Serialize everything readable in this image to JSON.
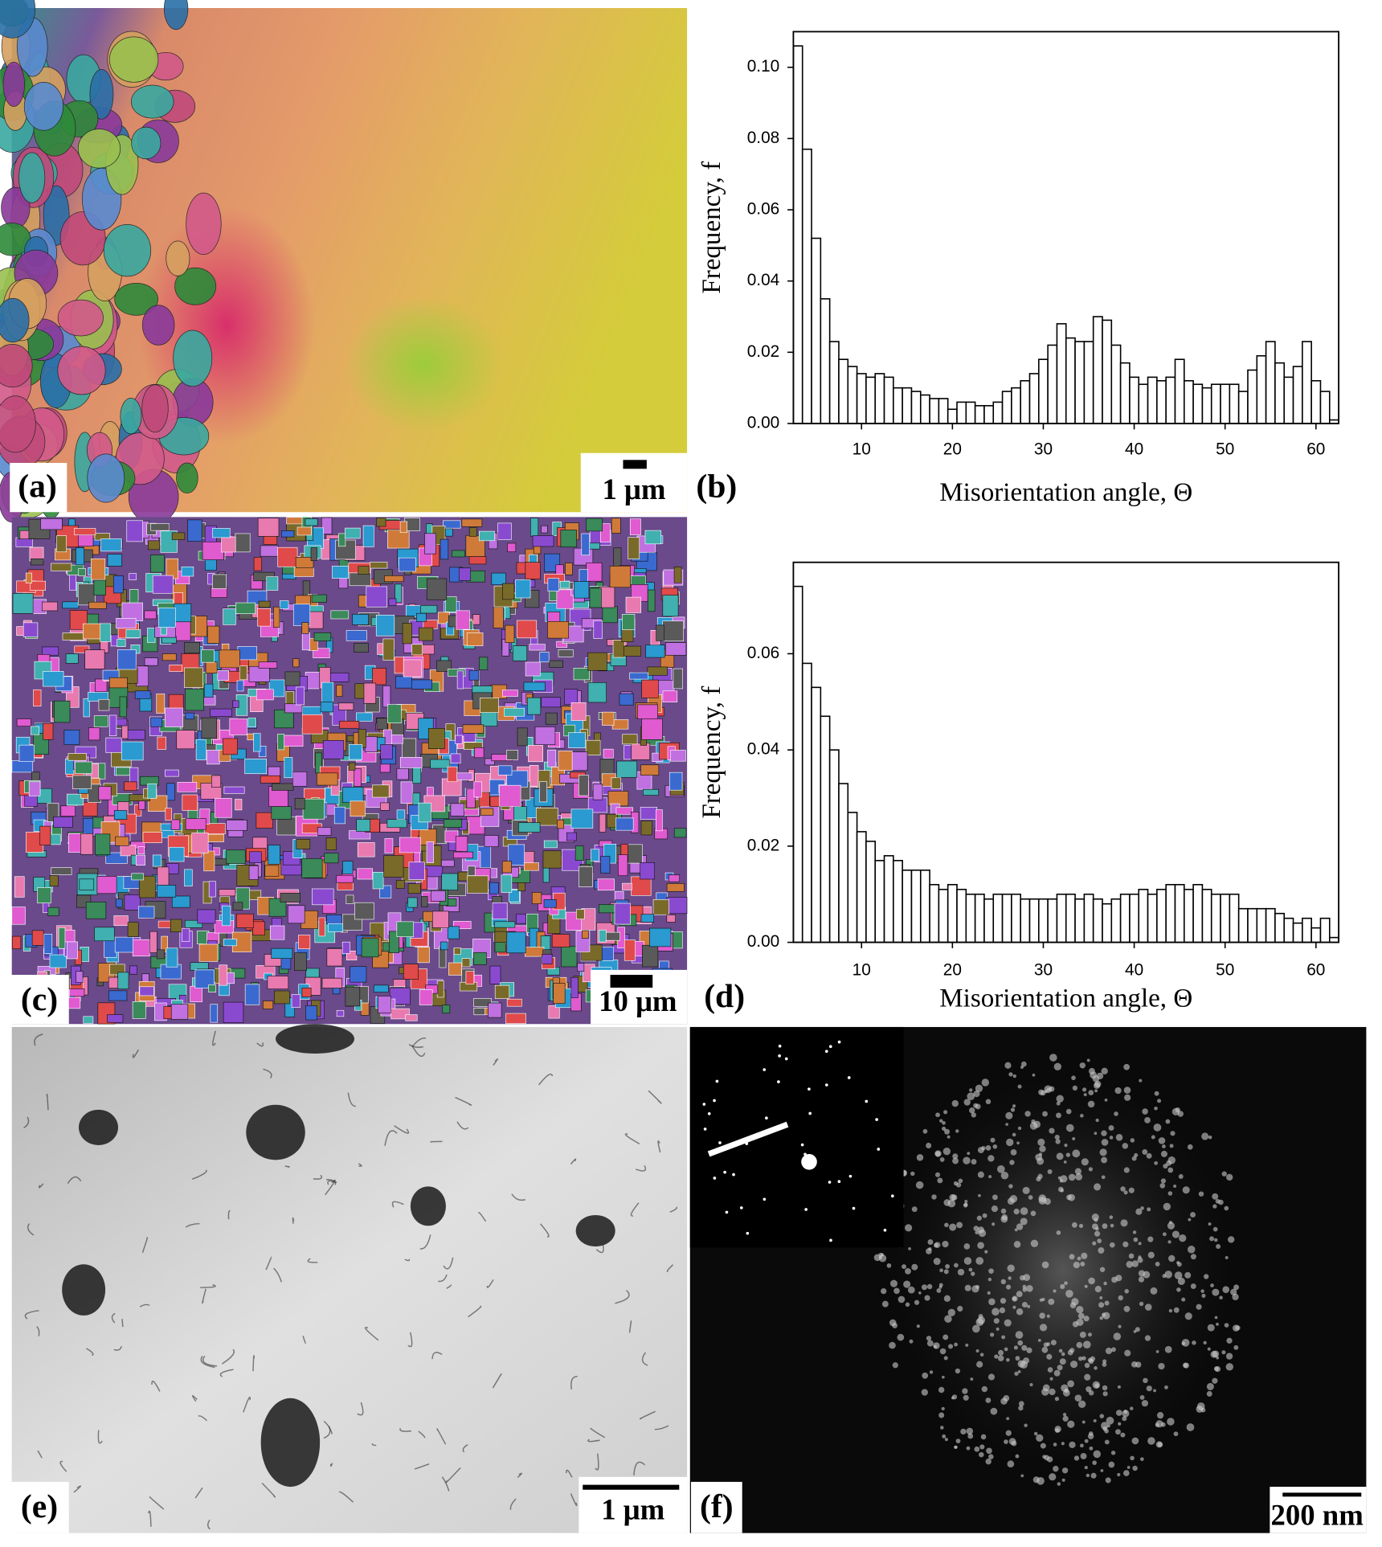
{
  "chart_data": [
    {
      "type": "histogram",
      "panel": "(b)",
      "xlabel": "Misorientation angle, Θ",
      "ylabel": "Frequency, f",
      "bins": [
        2.5,
        3.5,
        4.5,
        5.5,
        6.5,
        7.5,
        8.5,
        9.5,
        10.5,
        11.5,
        12.5,
        13.5,
        14.5,
        15.5,
        16.5,
        17.5,
        18.5,
        19.5,
        20.5,
        21.5,
        22.5,
        23.5,
        24.5,
        25.5,
        26.5,
        27.5,
        28.5,
        29.5,
        30.5,
        31.5,
        32.5,
        33.5,
        34.5,
        35.5,
        36.5,
        37.5,
        38.5,
        39.5,
        40.5,
        41.5,
        42.5,
        43.5,
        44.5,
        45.5,
        46.5,
        47.5,
        48.5,
        49.5,
        50.5,
        51.5,
        52.5,
        53.5,
        54.5,
        55.5,
        56.5,
        57.5,
        58.5,
        59.5,
        60.5,
        61.5,
        62.5
      ],
      "counts": [
        0.106,
        0.077,
        0.052,
        0.035,
        0.023,
        0.018,
        0.016,
        0.014,
        0.013,
        0.014,
        0.013,
        0.01,
        0.01,
        0.009,
        0.008,
        0.007,
        0.007,
        0.004,
        0.006,
        0.006,
        0.005,
        0.005,
        0.006,
        0.009,
        0.01,
        0.012,
        0.014,
        0.018,
        0.022,
        0.028,
        0.024,
        0.023,
        0.023,
        0.03,
        0.029,
        0.022,
        0.017,
        0.013,
        0.011,
        0.013,
        0.012,
        0.013,
        0.018,
        0.012,
        0.011,
        0.01,
        0.011,
        0.011,
        0.011,
        0.009,
        0.015,
        0.019,
        0.023,
        0.017,
        0.013,
        0.016,
        0.023,
        0.012,
        0.009,
        0.001
      ],
      "color": "#ffffff",
      "edgecolor": "#000000",
      "xlim": [
        2.5,
        62.5
      ],
      "ylim": [
        0,
        0.11
      ],
      "xticks": [
        10,
        20,
        30,
        40,
        50,
        60
      ],
      "yticks": [
        {
          "value": 0,
          "label": "0.00"
        },
        {
          "value": 0.02,
          "label": "0.02"
        },
        {
          "value": 0.04,
          "label": "0.04"
        },
        {
          "value": 0.06,
          "label": "0.06"
        },
        {
          "value": 0.08,
          "label": "0.08"
        },
        {
          "value": 0.1,
          "label": "0.10"
        }
      ]
    },
    {
      "type": "histogram",
      "panel": "(d)",
      "xlabel": "Misorientation angle, Θ",
      "ylabel": "Frequency, f",
      "bins": [
        2.5,
        3.5,
        4.5,
        5.5,
        6.5,
        7.5,
        8.5,
        9.5,
        10.5,
        11.5,
        12.5,
        13.5,
        14.5,
        15.5,
        16.5,
        17.5,
        18.5,
        19.5,
        20.5,
        21.5,
        22.5,
        23.5,
        24.5,
        25.5,
        26.5,
        27.5,
        28.5,
        29.5,
        30.5,
        31.5,
        32.5,
        33.5,
        34.5,
        35.5,
        36.5,
        37.5,
        38.5,
        39.5,
        40.5,
        41.5,
        42.5,
        43.5,
        44.5,
        45.5,
        46.5,
        47.5,
        48.5,
        49.5,
        50.5,
        51.5,
        52.5,
        53.5,
        54.5,
        55.5,
        56.5,
        57.5,
        58.5,
        59.5,
        60.5,
        61.5,
        62.5
      ],
      "counts": [
        0.074,
        0.058,
        0.053,
        0.047,
        0.04,
        0.033,
        0.027,
        0.023,
        0.021,
        0.017,
        0.018,
        0.017,
        0.015,
        0.015,
        0.015,
        0.012,
        0.011,
        0.012,
        0.011,
        0.01,
        0.01,
        0.009,
        0.01,
        0.01,
        0.01,
        0.009,
        0.009,
        0.009,
        0.009,
        0.01,
        0.01,
        0.009,
        0.01,
        0.009,
        0.008,
        0.009,
        0.01,
        0.01,
        0.011,
        0.01,
        0.011,
        0.012,
        0.012,
        0.011,
        0.012,
        0.011,
        0.01,
        0.01,
        0.01,
        0.007,
        0.007,
        0.007,
        0.007,
        0.006,
        0.005,
        0.004,
        0.005,
        0.003,
        0.005,
        0.001
      ],
      "color": "#ffffff",
      "edgecolor": "#000000",
      "xlim": [
        2.5,
        62.5
      ],
      "ylim": [
        0,
        0.079
      ],
      "xticks": [
        10,
        20,
        30,
        40,
        50,
        60
      ],
      "yticks": [
        {
          "value": 0,
          "label": "0.00"
        },
        {
          "value": 0.02,
          "label": "0.02"
        },
        {
          "value": 0.04,
          "label": "0.04"
        },
        {
          "value": 0.06,
          "label": "0.06"
        }
      ]
    }
  ],
  "images": [
    {
      "label": "(a)",
      "scale_bar": "1 μm"
    },
    {
      "label": "(c)",
      "scale_bar": "10 μm"
    },
    {
      "label": "(e)",
      "scale_bar": "1 μm"
    },
    {
      "label": "(f)",
      "scale_bar": "200 nm"
    }
  ]
}
